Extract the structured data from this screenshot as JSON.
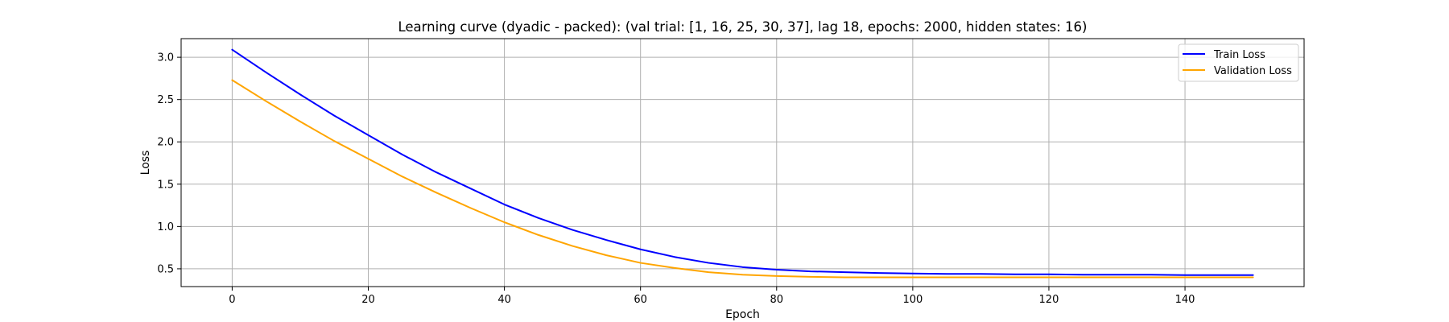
{
  "chart_data": {
    "type": "line",
    "title": "Learning curve (dyadic - packed): (val trial: [1, 16, 25, 30, 37], lag 18, epochs: 2000, hidden states: 16)",
    "xlabel": "Epoch",
    "ylabel": "Loss",
    "xlim": [
      -7.5,
      157.5
    ],
    "ylim": [
      0.29,
      3.22
    ],
    "xticks": [
      0,
      20,
      40,
      60,
      80,
      100,
      120,
      140
    ],
    "yticks": [
      0.5,
      1.0,
      1.5,
      2.0,
      2.5,
      3.0
    ],
    "xtick_labels": [
      "0",
      "20",
      "40",
      "60",
      "80",
      "100",
      "120",
      "140"
    ],
    "ytick_labels": [
      "0.5",
      "1.0",
      "1.5",
      "2.0",
      "2.5",
      "3.0"
    ],
    "grid": true,
    "legend_position": "top-right",
    "series": [
      {
        "name": "Train Loss",
        "color": "#0000ff",
        "x": [
          0,
          5,
          10,
          15,
          20,
          25,
          30,
          35,
          40,
          45,
          50,
          55,
          60,
          65,
          70,
          75,
          80,
          85,
          90,
          95,
          100,
          105,
          110,
          115,
          120,
          125,
          130,
          135,
          140,
          145,
          150
        ],
        "y": [
          3.09,
          2.82,
          2.56,
          2.31,
          2.08,
          1.85,
          1.64,
          1.45,
          1.26,
          1.1,
          0.96,
          0.84,
          0.73,
          0.64,
          0.57,
          0.52,
          0.49,
          0.47,
          0.46,
          0.45,
          0.445,
          0.44,
          0.44,
          0.435,
          0.435,
          0.43,
          0.43,
          0.43,
          0.425,
          0.425,
          0.425
        ]
      },
      {
        "name": "Validation Loss",
        "color": "#ffa500",
        "x": [
          0,
          5,
          10,
          15,
          20,
          25,
          30,
          35,
          40,
          45,
          50,
          55,
          60,
          65,
          70,
          75,
          80,
          85,
          90,
          95,
          100,
          105,
          110,
          115,
          120,
          125,
          130,
          135,
          140,
          145,
          150
        ],
        "y": [
          2.73,
          2.48,
          2.24,
          2.01,
          1.8,
          1.59,
          1.4,
          1.22,
          1.05,
          0.9,
          0.77,
          0.66,
          0.57,
          0.51,
          0.46,
          0.43,
          0.415,
          0.405,
          0.4,
          0.4,
          0.4,
          0.4,
          0.4,
          0.4,
          0.4,
          0.4,
          0.4,
          0.4,
          0.4,
          0.4,
          0.4
        ]
      }
    ]
  }
}
